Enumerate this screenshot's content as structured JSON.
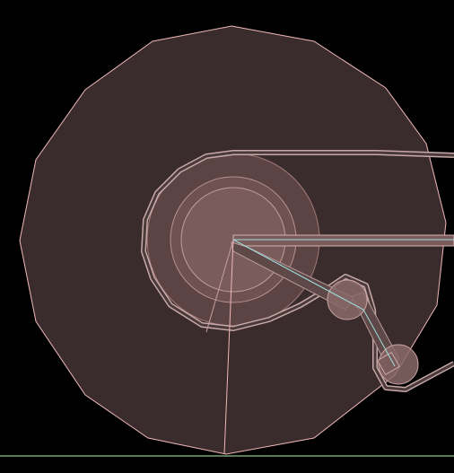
{
  "viewport": {
    "background": "#000000"
  },
  "colors": {
    "disc_fill": "#3a2c2c",
    "disc_outline": "#f0b8b8",
    "hub_outer": "#6b5050",
    "hub_mid": "#7a5c5c",
    "hub_inner": "#8a6868",
    "wire": "#9fe0dc",
    "wire_fill": "#4a3c3c",
    "ground_line": "#b8f0a8",
    "joint": "#8a6a6a",
    "arm": "#5e4848"
  },
  "icons": {
    "disc": "wheel-mesh",
    "hub": "hub-cylinder",
    "cable": "cable-path",
    "arm": "linkage-arm",
    "joint": "pivot-joint",
    "ground": "ground-plane"
  }
}
